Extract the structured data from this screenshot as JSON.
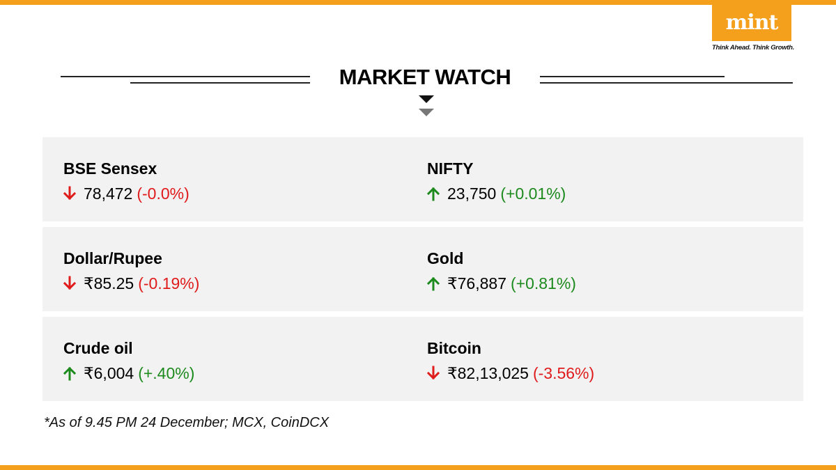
{
  "brand": {
    "logo_text": "mint",
    "tagline": "Think Ahead. Think Growth."
  },
  "title": "MARKET WATCH",
  "markets": [
    {
      "name": "BSE Sensex",
      "value": "78,472",
      "change": "(-0.0%)",
      "direction": "down"
    },
    {
      "name": "NIFTY",
      "value": "23,750",
      "change": "(+0.01%)",
      "direction": "up"
    },
    {
      "name": "Dollar/Rupee",
      "value": "₹85.25",
      "change": "(-0.19%)",
      "direction": "down"
    },
    {
      "name": "Gold",
      "value": "₹76,887",
      "change": "(+0.81%)",
      "direction": "up"
    },
    {
      "name": "Crude oil",
      "value": "₹6,004",
      "change": "(+.40%)",
      "direction": "up"
    },
    {
      "name": "Bitcoin",
      "value": "₹82,13,025",
      "change": "(-3.56%)",
      "direction": "down"
    }
  ],
  "footnote": "*As of 9.45 PM 24 December; MCX, CoinDCX",
  "colors": {
    "brand_orange": "#f5a01c",
    "up_green": "#1d8a1d",
    "down_red": "#e01b1b",
    "card_bg": "#f2f2f2"
  }
}
